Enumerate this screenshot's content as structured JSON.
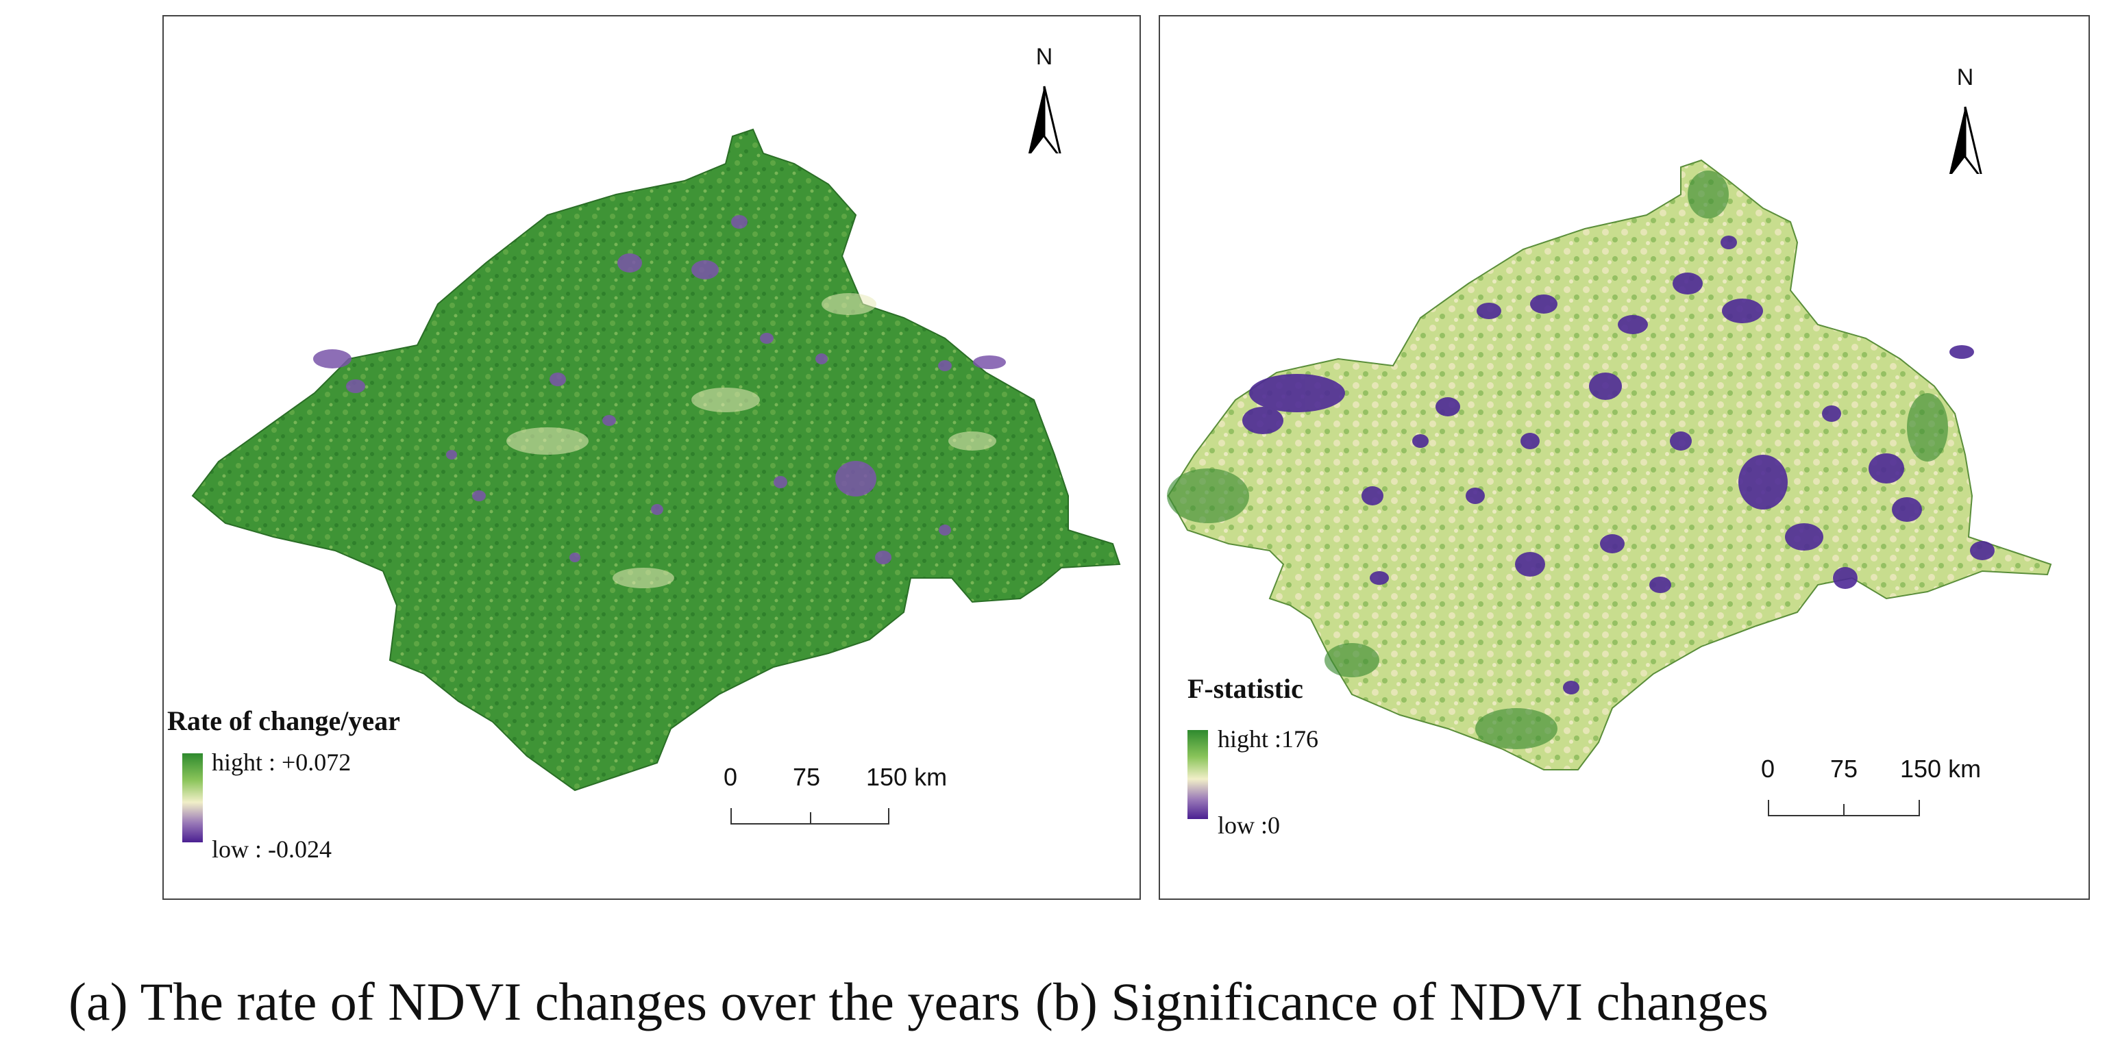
{
  "panels": {
    "a": {
      "north_label": "N",
      "legend_title": "Rate of change/year",
      "legend_high": "hight : +0.072",
      "legend_low": "low : -0.024",
      "scale": {
        "zero": "0",
        "mid": "75",
        "end": "150 km"
      }
    },
    "b": {
      "north_label": "N",
      "legend_title": "F-statistic",
      "legend_high": "hight :176",
      "legend_low": "low :0",
      "scale": {
        "zero": "0",
        "mid": "75",
        "end": "150 km"
      }
    }
  },
  "caption": {
    "a": "(a) The rate of NDVI changes over the years",
    "b": "(b) Significance of NDVI changes"
  },
  "colors": {
    "vegetation_high": "#2e8a2e",
    "vegetation_mid": "#a8d06a",
    "neutral": "#f1efc8",
    "low": "#4a1f92"
  }
}
